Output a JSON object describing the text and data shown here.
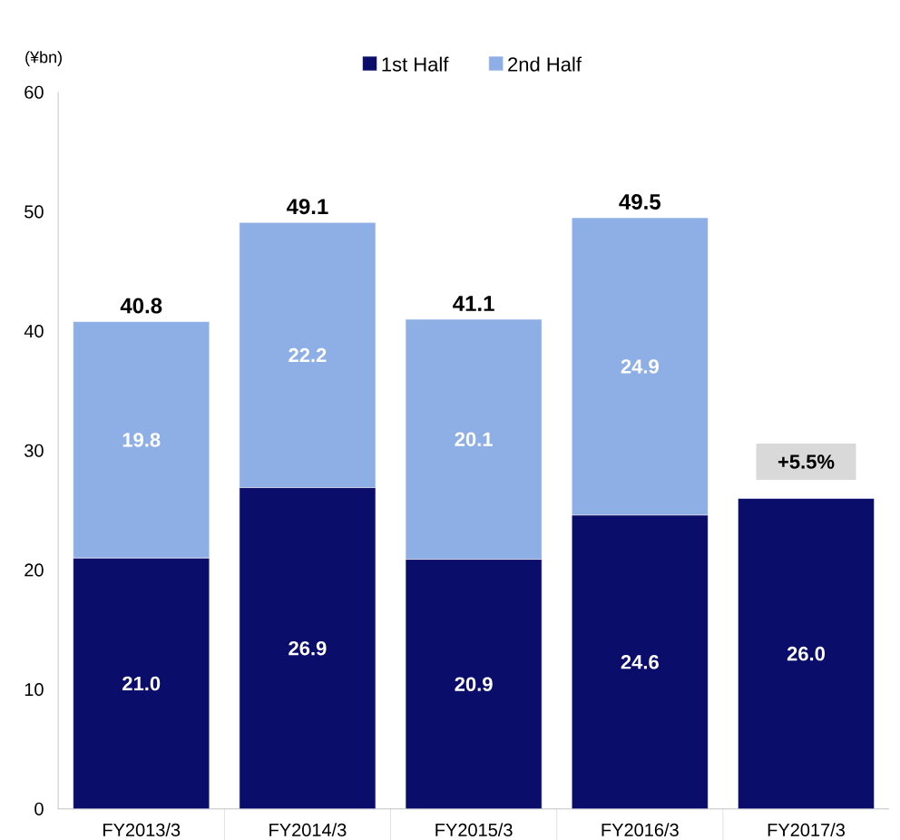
{
  "chart_data": {
    "type": "bar",
    "stacked": true,
    "ylabel": "(¥bn)",
    "categories": [
      "FY2013/3",
      "FY2014/3",
      "FY2015/3",
      "FY2016/3",
      "FY2017/3"
    ],
    "series": [
      {
        "name": "1st Half",
        "color": "#0b0d6b",
        "values": [
          21.0,
          26.9,
          20.9,
          24.6,
          26.0
        ],
        "value_labels": [
          "21.0",
          "26.9",
          "20.9",
          "24.6",
          "26.0"
        ]
      },
      {
        "name": "2nd Half",
        "color": "#8eaee6",
        "values": [
          19.8,
          22.2,
          20.1,
          24.9,
          null
        ],
        "value_labels": [
          "19.8",
          "22.2",
          "20.1",
          "24.9",
          null
        ]
      }
    ],
    "totals": [
      "40.8",
      "49.1",
      "41.1",
      "49.5",
      null
    ],
    "annotations": [
      {
        "text": "+5.5%",
        "x": "FY2017/3",
        "y": 26.0
      }
    ],
    "ylim": [
      0,
      60
    ],
    "yticks": [
      0,
      10,
      20,
      30,
      40,
      50,
      60
    ],
    "legend": "top",
    "grid": false
  }
}
